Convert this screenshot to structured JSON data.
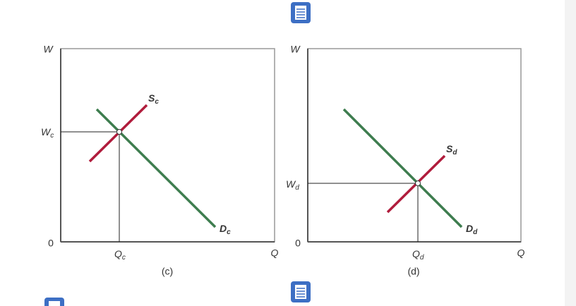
{
  "panels": [
    {
      "y_axis_label": "W",
      "x_axis_label": "Q",
      "origin_label": "0",
      "equilibrium_wage": {
        "main": "W",
        "sub": "c"
      },
      "equilibrium_quantity": {
        "main": "Q",
        "sub": "c"
      },
      "supply_label": {
        "main": "S",
        "sub": "c"
      },
      "demand_label": {
        "main": "D",
        "sub": "c"
      },
      "caption": "(c)"
    },
    {
      "y_axis_label": "W",
      "x_axis_label": "Q",
      "origin_label": "0",
      "equilibrium_wage": {
        "main": "W",
        "sub": "d"
      },
      "equilibrium_quantity": {
        "main": "Q",
        "sub": "d"
      },
      "supply_label": {
        "main": "S",
        "sub": "d"
      },
      "demand_label": {
        "main": "D",
        "sub": "d"
      },
      "caption": "(d)"
    }
  ]
}
